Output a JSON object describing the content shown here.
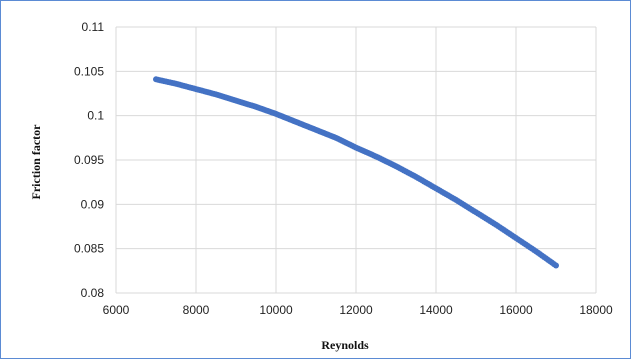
{
  "chart_data": {
    "type": "scatter",
    "title": "",
    "xlabel": "Reynolds",
    "ylabel": "Friction factor",
    "xlim": [
      6000,
      18000
    ],
    "ylim": [
      0.08,
      0.11
    ],
    "x_ticks": [
      "6000",
      "8000",
      "10000",
      "12000",
      "14000",
      "16000",
      "18000"
    ],
    "y_ticks": [
      "0.08",
      "0.085",
      "0.09",
      "0.095",
      "0.1",
      "0.105",
      "0.11"
    ],
    "grid": "both",
    "legend": "none",
    "marker_color": "#4472c4",
    "series": [
      {
        "x": [
          7000,
          7500,
          8000,
          8500,
          9000,
          9500,
          10000,
          10500,
          11000,
          11500,
          12000,
          12500,
          13000,
          13500,
          14000,
          14500,
          15000,
          15500,
          16000,
          16500,
          17000
        ],
        "values": [
          0.1041,
          0.1036,
          0.103,
          0.1024,
          0.1017,
          0.101,
          0.1002,
          0.0993,
          0.0984,
          0.0975,
          0.0964,
          0.0954,
          0.0943,
          0.0931,
          0.0918,
          0.0905,
          0.0891,
          0.0877,
          0.0862,
          0.0847,
          0.0831
        ]
      }
    ]
  }
}
